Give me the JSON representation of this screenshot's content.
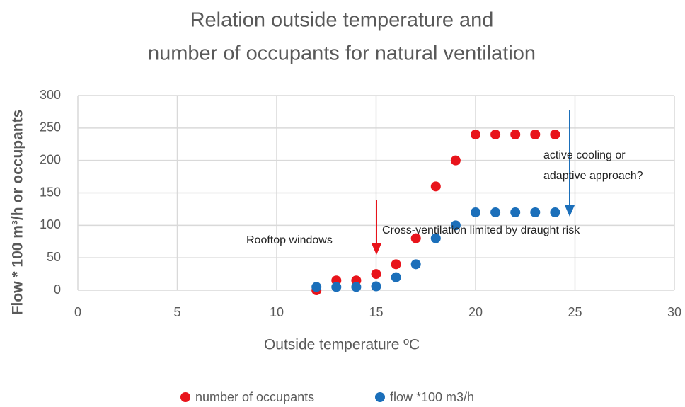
{
  "chart_data": {
    "type": "scatter",
    "title": [
      "Relation outside temperature and",
      "number of occupants for natural ventilation"
    ],
    "x_label": "Outside temperature ºC",
    "y_label": "Flow * 100 m³/h or occupants",
    "x": [
      12,
      13,
      14,
      15,
      16,
      17,
      18,
      19,
      20,
      21,
      22,
      23,
      24
    ],
    "series": [
      {
        "name": "number of occupants",
        "color": "#e8141b",
        "values": [
          0,
          15,
          15,
          25,
          40,
          80,
          160,
          200,
          240,
          240,
          240,
          240,
          240
        ]
      },
      {
        "name": "flow *100 m3/h",
        "color": "#1b6fba",
        "values": [
          5,
          5,
          5,
          6,
          20,
          40,
          80,
          100,
          120,
          120,
          120,
          120,
          120
        ]
      }
    ],
    "xlim": [
      0,
      30
    ],
    "xticks": [
      0,
      5,
      10,
      15,
      20,
      25,
      30
    ],
    "ylim": [
      0,
      300
    ],
    "yticks": [
      0,
      50,
      100,
      150,
      200,
      250,
      300
    ],
    "grid": true,
    "legend": "bottom",
    "annotations": [
      "Rooftop windows",
      "Cross-ventilation limited by draught risk",
      "active cooling or",
      "adaptive approach?"
    ]
  }
}
